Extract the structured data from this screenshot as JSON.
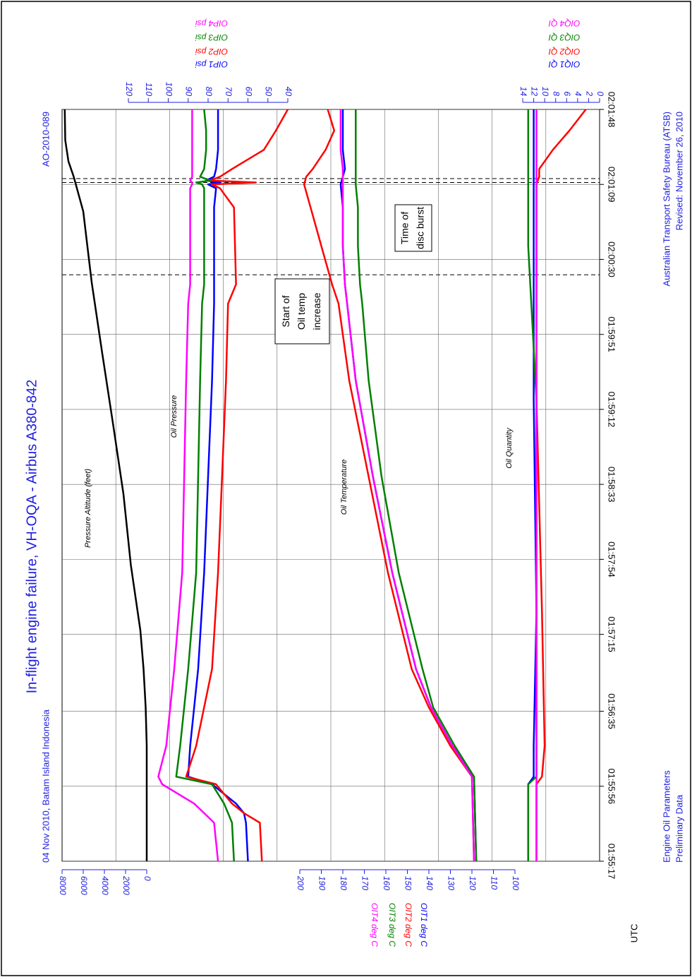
{
  "header": {
    "title": "In-flight engine failure, VH-OQA - Airbus A380-842",
    "subtitle": "04 Nov 2010, Batam Island Indonesia",
    "report_id": "AO-2010-089"
  },
  "footer": {
    "left": [
      "Engine Oil Parameters",
      "Preliminary Data"
    ],
    "right": [
      "Australian Transport Safety Bureau (ATSB)",
      "Revised: November 26, 2010"
    ]
  },
  "chart_data": [
    {
      "type": "line",
      "title": "Pressure Altitude (feet)",
      "xlabel": "UTC",
      "color": "#000000",
      "xlim": [
        0,
        391
      ],
      "xticks": [
        {
          "value": 0,
          "label": "01:55:17"
        },
        {
          "value": 39,
          "label": "01:55:56"
        },
        {
          "value": 78,
          "label": "01:56:35"
        },
        {
          "value": 118,
          "label": "01:57:15"
        },
        {
          "value": 157,
          "label": "01:57:54"
        },
        {
          "value": 196,
          "label": "01:58:33"
        },
        {
          "value": 235,
          "label": "01:59:12"
        },
        {
          "value": 274,
          "label": "01:59:51"
        },
        {
          "value": 313,
          "label": "02:00:30"
        },
        {
          "value": 352,
          "label": "02:01:09"
        },
        {
          "value": 391,
          "label": "02:01:48"
        }
      ],
      "x": [
        0,
        40,
        60,
        80,
        100,
        120,
        154,
        191,
        228,
        264,
        301,
        338,
        356,
        364,
        375,
        391
      ],
      "values": [
        0,
        0,
        0,
        100,
        300,
        600,
        1500,
        2200,
        3200,
        4200,
        5200,
        6000,
        6900,
        7400,
        7700,
        7750
      ],
      "ylim": [
        0,
        8000
      ],
      "yticks": [
        0,
        2000,
        4000,
        6000,
        8000
      ],
      "annotations": [
        {
          "text": [
            "Start of",
            "Oil temp",
            "increase"
          ],
          "x": [
            305
          ]
        },
        {
          "text": [
            "Time of",
            "disc burst"
          ],
          "x": [
            353,
            355
          ]
        }
      ]
    },
    {
      "type": "line",
      "title": "Oil Pressure",
      "x": [
        0,
        20,
        25,
        30,
        40,
        44,
        60,
        100,
        150,
        200,
        250,
        290,
        300,
        340,
        350,
        352,
        353,
        354,
        356,
        360,
        370,
        380,
        391
      ],
      "ylim": [
        40,
        120
      ],
      "yticks": [
        40,
        50,
        60,
        70,
        80,
        90,
        100,
        110,
        120
      ],
      "series": [
        {
          "name": "OIP1 psi",
          "color": "#0000ff",
          "values": [
            60,
            61,
            62,
            66,
            78,
            90,
            89,
            85,
            82,
            80,
            78,
            77,
            77,
            77,
            76,
            80,
            74,
            81,
            77,
            76,
            75,
            75,
            75
          ]
        },
        {
          "name": "OIP2 psi",
          "color": "#ff0000",
          "values": [
            53,
            54,
            62,
            68,
            76,
            91,
            86,
            78,
            75,
            73,
            71,
            70,
            66,
            67,
            74,
            78,
            56,
            79,
            74,
            68,
            52,
            46,
            40
          ]
        },
        {
          "name": "OIP3 psi",
          "color": "#008000",
          "values": [
            67,
            68,
            70,
            72,
            78,
            96,
            94,
            90,
            86,
            85,
            84,
            83,
            82,
            82,
            82,
            83,
            86,
            79,
            84,
            82,
            81,
            81,
            82
          ]
        },
        {
          "name": "OIP4 psi",
          "color": "#ff00ff",
          "values": [
            75,
            77,
            82,
            87,
            103,
            105,
            101,
            97,
            93,
            92,
            91,
            90,
            89,
            89,
            89,
            88,
            88,
            89,
            88,
            88,
            88,
            88,
            88
          ]
        }
      ]
    },
    {
      "type": "line",
      "title": "Oil Temperature",
      "x": [
        0,
        44,
        60,
        80,
        100,
        150,
        200,
        250,
        290,
        300,
        320,
        340,
        352,
        356,
        360,
        370,
        380,
        391
      ],
      "ylim": [
        100,
        200
      ],
      "yticks": [
        100,
        110,
        120,
        130,
        140,
        150,
        160,
        170,
        180,
        190,
        200
      ],
      "series": [
        {
          "name": "OIT1 deg C",
          "color": "#0000ff",
          "values": [
            118,
            119,
            129,
            139,
            146,
            157,
            166,
            174,
            178,
            179,
            180,
            180,
            181,
            180,
            179,
            180,
            180,
            180
          ]
        },
        {
          "name": "OIT2 deg C",
          "color": "#ff0000",
          "values": [
            119,
            120,
            130,
            140,
            148,
            159,
            168,
            177,
            182,
            185,
            190,
            195,
            198,
            197,
            194,
            188,
            184,
            187
          ]
        },
        {
          "name": "OIT3 deg C",
          "color": "#008000",
          "values": [
            118,
            119,
            128,
            138,
            143,
            154,
            162,
            168,
            171,
            172,
            173,
            173,
            174,
            174,
            174,
            174,
            174,
            174
          ]
        },
        {
          "name": "OIT4 deg C",
          "color": "#ff00ff",
          "values": [
            119,
            120,
            129,
            139,
            146,
            157,
            166,
            174,
            178,
            179,
            180,
            180,
            180,
            180,
            180,
            181,
            181,
            181
          ]
        }
      ]
    },
    {
      "type": "line",
      "title": "Oil Quantity",
      "x": [
        0,
        40,
        44,
        60,
        130,
        240,
        320,
        352,
        356,
        360,
        370,
        380,
        391
      ],
      "ylim": [
        0,
        14
      ],
      "yticks": [
        0,
        2,
        4,
        6,
        8,
        10,
        12,
        14
      ],
      "series": [
        {
          "name": "OIQ1 QI",
          "color": "#0000ff",
          "values": [
            13,
            13,
            12,
            12,
            11.5,
            12,
            12,
            12,
            12,
            12,
            12,
            12,
            12
          ]
        },
        {
          "name": "OIQ2 QI",
          "color": "#ff0000",
          "values": [
            11.5,
            11.5,
            10.5,
            10,
            10.5,
            11.5,
            11.5,
            11.5,
            11,
            11,
            8.5,
            5.5,
            2.5
          ]
        },
        {
          "name": "OIQ3 QI",
          "color": "#008000",
          "values": [
            13,
            13,
            11.5,
            11.5,
            11.5,
            11.5,
            13,
            13,
            13,
            13,
            13,
            13,
            13
          ]
        },
        {
          "name": "OIQ4 QI",
          "color": "#ff00ff",
          "values": [
            11.5,
            11.5,
            11.5,
            11.5,
            11.5,
            11.5,
            11.5,
            11.5,
            11.5,
            11.5,
            11.5,
            11.5,
            11.5
          ]
        }
      ]
    }
  ]
}
